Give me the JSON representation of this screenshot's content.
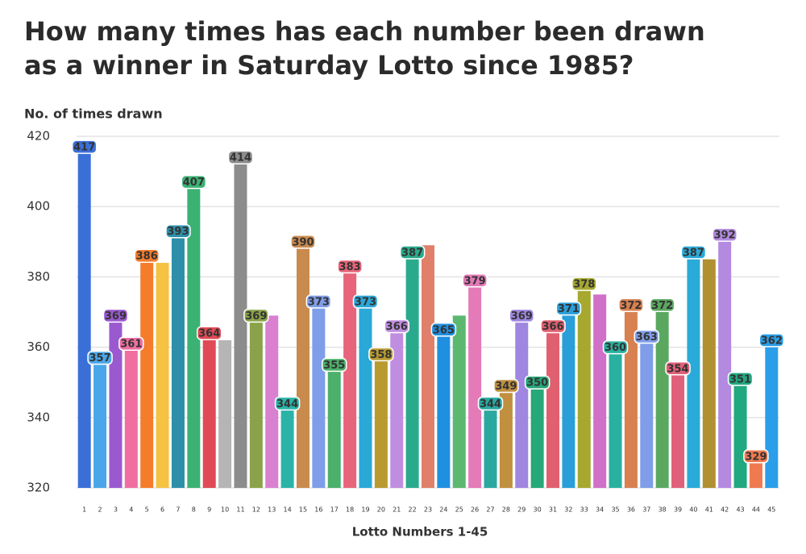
{
  "chart_data": {
    "type": "bar",
    "title": "How many times has each number been drawn as a winner in Saturday Lotto since 1985?",
    "y_label": "No. of times drawn",
    "x_label": "Lotto Numbers 1-45",
    "categories": [
      "1",
      "2",
      "3",
      "4",
      "5",
      "6",
      "7",
      "8",
      "9",
      "10",
      "11",
      "12",
      "13",
      "14",
      "15",
      "16",
      "17",
      "18",
      "19",
      "20",
      "21",
      "22",
      "23",
      "24",
      "25",
      "26",
      "27",
      "28",
      "29",
      "30",
      "31",
      "32",
      "33",
      "34",
      "35",
      "36",
      "37",
      "38",
      "39",
      "40",
      "41",
      "42",
      "43",
      "44",
      "45"
    ],
    "values": [
      417,
      357,
      369,
      361,
      386,
      384,
      393,
      407,
      364,
      362,
      414,
      369,
      369,
      344,
      390,
      373,
      355,
      383,
      373,
      358,
      366,
      387,
      389,
      365,
      369,
      379,
      344,
      349,
      369,
      350,
      366,
      371,
      378,
      375,
      360,
      372,
      363,
      372,
      354,
      387,
      385,
      392,
      351,
      329,
      362
    ],
    "value_labels": [
      "417",
      "357",
      "369",
      "361",
      "386",
      null,
      "393",
      "407",
      "364",
      null,
      "414",
      "369",
      null,
      "344",
      "390",
      "373",
      "355",
      "383",
      "373",
      "358",
      "366",
      "387",
      null,
      "365",
      null,
      "379",
      "344",
      "349",
      "369",
      "350",
      "366",
      "371",
      "378",
      null,
      "360",
      "372",
      "363",
      "372",
      "354",
      "387",
      null,
      "392",
      "351",
      "329",
      "362"
    ],
    "colors": [
      "#3a6fd8",
      "#4aa6e8",
      "#9b59d0",
      "#f06ea0",
      "#f57c2b",
      "#f5c242",
      "#2e8fa8",
      "#3bb273",
      "#e04a55",
      "#b5b5b5",
      "#8c8c8c",
      "#8aa34a",
      "#d980d0",
      "#2bb3a8",
      "#c98a4e",
      "#7f9de8",
      "#4bb06a",
      "#e8647a",
      "#2aa8d8",
      "#b89a30",
      "#c08ee0",
      "#2aaa8c",
      "#e0806a",
      "#1f8fe0",
      "#5cb870",
      "#e47ab8",
      "#2aa8a0",
      "#c09040",
      "#9f86e0",
      "#27a878",
      "#e06070",
      "#2a9ed8",
      "#a6a830",
      "#d070c8",
      "#2ab0a0",
      "#d88050",
      "#7f9de8",
      "#5aa860",
      "#e0607a",
      "#2aaad8",
      "#b09030",
      "#b38ae0",
      "#20a880",
      "#f07a50",
      "#2a9ee8"
    ],
    "ylim": [
      320,
      420
    ],
    "yticks": [
      320,
      340,
      360,
      380,
      400,
      420
    ],
    "grid": true
  }
}
